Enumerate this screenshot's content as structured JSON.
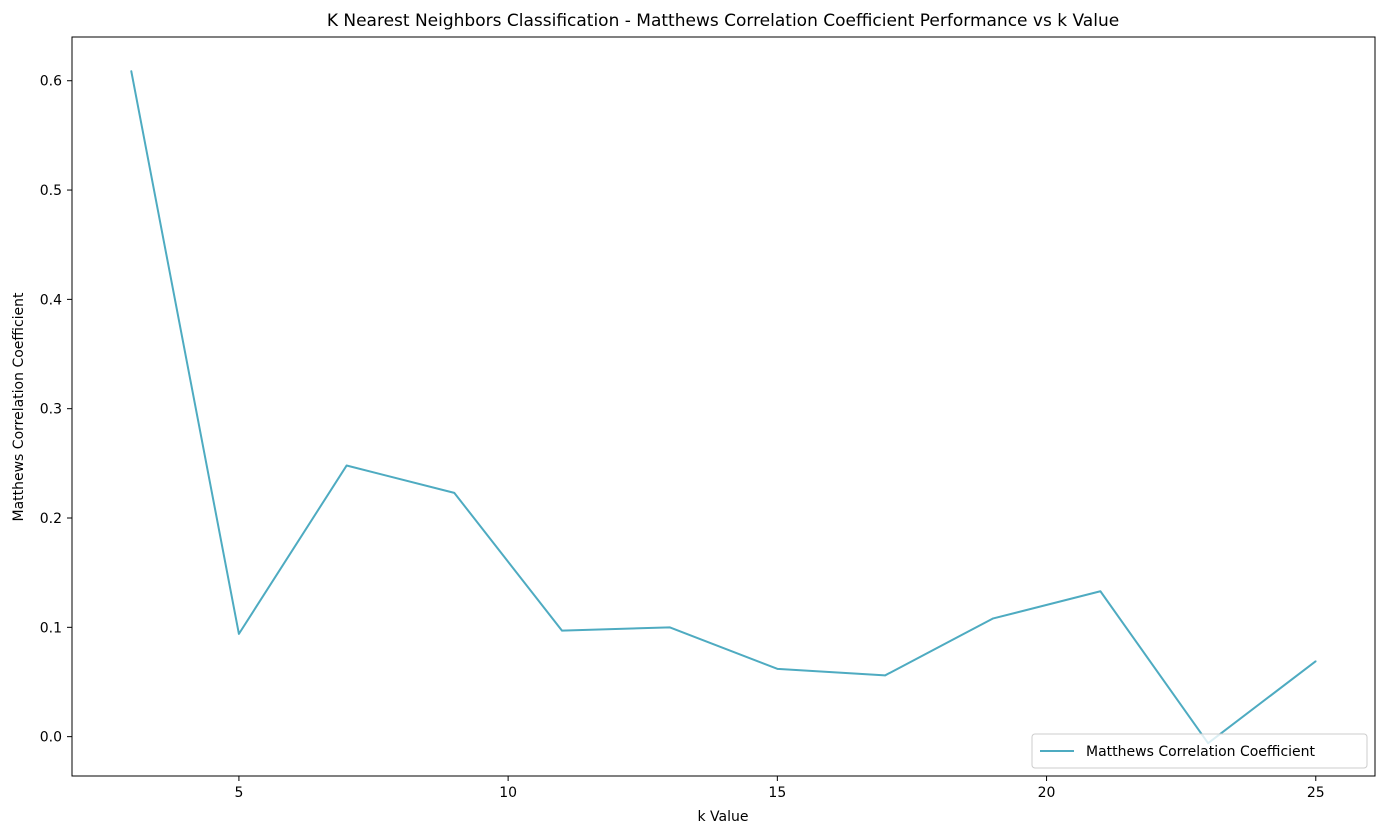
{
  "chart_data": {
    "type": "line",
    "title": "K Nearest Neighbors Classification - Matthews Correlation Coefficient Performance vs k Value",
    "xlabel": "k Value",
    "ylabel": "Matthews Correlation Coefficient",
    "xlim": [
      1.9,
      26.1
    ],
    "ylim": [
      -0.036,
      0.64
    ],
    "xticks": [
      5,
      10,
      15,
      20,
      25
    ],
    "xtick_labels": [
      "5",
      "10",
      "15",
      "20",
      "25"
    ],
    "yticks": [
      0.0,
      0.1,
      0.2,
      0.3,
      0.4,
      0.5,
      0.6
    ],
    "ytick_labels": [
      "0.0",
      "0.1",
      "0.2",
      "0.3",
      "0.4",
      "0.5",
      "0.6"
    ],
    "grid": false,
    "legend_position": "lower-right",
    "series": [
      {
        "name": "Matthews Correlation Coefficient",
        "color": "#4eabc1",
        "x": [
          3,
          5,
          7,
          9,
          11,
          13,
          15,
          17,
          19,
          21,
          23,
          25
        ],
        "y": [
          0.609,
          0.094,
          0.248,
          0.223,
          0.097,
          0.1,
          0.062,
          0.056,
          0.108,
          0.133,
          -0.006,
          0.069
        ]
      }
    ]
  }
}
